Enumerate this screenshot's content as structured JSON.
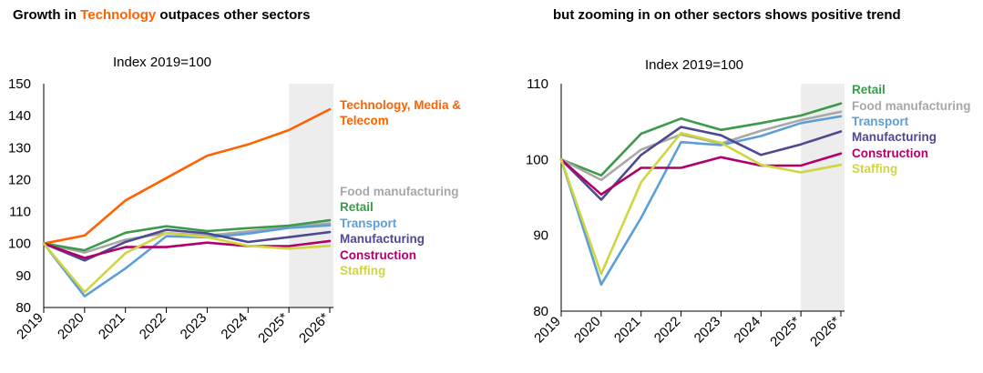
{
  "colors": {
    "Technology, Media & Telecom": "#ff6200",
    "Food manufacturing": "#a8a8a8",
    "Retail": "#3c9a4a",
    "Transport": "#5b9fd6",
    "Manufacturing": "#4d4a8f",
    "Construction": "#b0006a",
    "Staffing": "#cfd640",
    "forecast_shade": "#ededed"
  },
  "left_title": {
    "pre": "Growth in ",
    "highlight": "Technology",
    "post": " outpaces other sectors"
  },
  "right_title": "but zooming in on other sectors shows positive trend",
  "chart_data": [
    {
      "type": "line",
      "subtitle": "Index 2019=100",
      "categories": [
        "2019",
        "2020",
        "2021",
        "2022",
        "2023",
        "2024",
        "2025*",
        "2026*"
      ],
      "ylim": [
        80,
        150
      ],
      "yticks": [
        80,
        90,
        100,
        110,
        120,
        130,
        140,
        150
      ],
      "forecast_shading": [
        "2025*",
        "2026*"
      ],
      "grid": false,
      "series": [
        {
          "name": "Technology, Media & Telecom",
          "values": [
            100,
            102.5,
            113.5,
            120.5,
            127.5,
            131,
            135.5,
            142
          ]
        },
        {
          "name": "Food manufacturing",
          "values": [
            100,
            97.2,
            101.2,
            103.3,
            102.5,
            103.8,
            105.2,
            106.3
          ]
        },
        {
          "name": "Retail",
          "values": [
            100,
            97.9,
            103.4,
            105.4,
            103.9,
            104.8,
            105.6,
            107.3
          ]
        },
        {
          "name": "Transport",
          "values": [
            100,
            83.5,
            92.2,
            102.3,
            101.9,
            103.1,
            104.9,
            105.7
          ]
        },
        {
          "name": "Manufacturing",
          "values": [
            100,
            94.7,
            100.5,
            104.3,
            103.2,
            100.5,
            102,
            103.6
          ]
        },
        {
          "name": "Construction",
          "values": [
            100,
            95.5,
            98.9,
            98.9,
            100.3,
            99.2,
            99.2,
            100.8
          ]
        },
        {
          "name": "Staffing",
          "values": [
            100,
            84.8,
            97,
            103.3,
            102,
            99.3,
            98.4,
            99.3
          ]
        }
      ]
    },
    {
      "type": "line",
      "subtitle": "Index 2019=100",
      "categories": [
        "2019",
        "2020",
        "2021",
        "2022",
        "2023",
        "2024",
        "2025*",
        "2026*"
      ],
      "ylim": [
        80,
        110
      ],
      "yticks": [
        80,
        90,
        100,
        110
      ],
      "forecast_shading": [
        "2025*",
        "2026*"
      ],
      "grid": false,
      "series": [
        {
          "name": "Retail",
          "values": [
            100,
            97.9,
            103.4,
            105.4,
            103.9,
            104.8,
            105.8,
            107.4
          ]
        },
        {
          "name": "Food manufacturing",
          "values": [
            100,
            97.3,
            101.3,
            103.3,
            102.1,
            103.8,
            105.2,
            106.3
          ]
        },
        {
          "name": "Transport",
          "values": [
            100,
            83.5,
            92.3,
            102.3,
            101.9,
            103.1,
            104.8,
            105.7
          ]
        },
        {
          "name": "Manufacturing",
          "values": [
            100,
            94.7,
            100.6,
            104.3,
            103.2,
            100.6,
            102,
            103.7
          ]
        },
        {
          "name": "Construction",
          "values": [
            100,
            95.4,
            98.9,
            98.9,
            100.3,
            99.2,
            99.2,
            100.8
          ]
        },
        {
          "name": "Staffing",
          "values": [
            100,
            84.9,
            97.0,
            103.5,
            102.2,
            99.3,
            98.3,
            99.3
          ]
        }
      ]
    }
  ],
  "left_labels": [
    {
      "series": "Technology, Media & Telecom",
      "lines": [
        "Technology, Media &",
        "Telecom"
      ]
    },
    {
      "series": "Food manufacturing",
      "lines": [
        "Food manufacturing"
      ]
    },
    {
      "series": "Retail",
      "lines": [
        "Retail"
      ]
    },
    {
      "series": "Transport",
      "lines": [
        "Transport"
      ]
    },
    {
      "series": "Manufacturing",
      "lines": [
        "Manufacturing"
      ]
    },
    {
      "series": "Construction",
      "lines": [
        "Construction"
      ]
    },
    {
      "series": "Staffing",
      "lines": [
        "Staffing"
      ]
    }
  ],
  "right_labels": [
    {
      "series": "Retail",
      "lines": [
        "Retail"
      ]
    },
    {
      "series": "Food manufacturing",
      "lines": [
        "Food manufacturing"
      ]
    },
    {
      "series": "Transport",
      "lines": [
        "Transport"
      ]
    },
    {
      "series": "Manufacturing",
      "lines": [
        "Manufacturing"
      ]
    },
    {
      "series": "Construction",
      "lines": [
        "Construction"
      ]
    },
    {
      "series": "Staffing",
      "lines": [
        "Staffing"
      ]
    }
  ]
}
